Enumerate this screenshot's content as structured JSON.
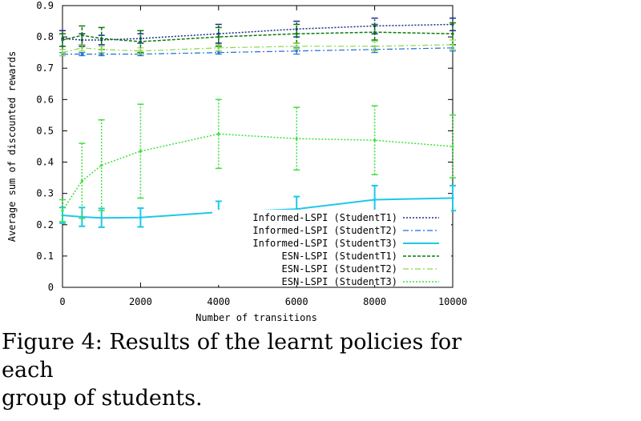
{
  "chart_data": {
    "type": "line",
    "xlabel": "Number of transitions",
    "ylabel": "Average sum of discounted rewards",
    "xlim": [
      0,
      10000
    ],
    "ylim": [
      0,
      0.9
    ],
    "x_ticks": [
      "0",
      "2000",
      "4000",
      "6000",
      "8000",
      "10000"
    ],
    "y_ticks": [
      "0",
      "0.1",
      "0.2",
      "0.3",
      "0.4",
      "0.5",
      "0.6",
      "0.7",
      "0.8",
      "0.9"
    ],
    "legend_position": "bottom-right",
    "grid": false,
    "x": [
      0,
      500,
      1000,
      2000,
      4000,
      6000,
      8000,
      10000
    ],
    "series": [
      {
        "name": "Informed-LSPI (StudentT1)",
        "color": "#1b2a8a",
        "dash": "2,2",
        "width": 1.5,
        "values": [
          0.795,
          0.79,
          0.79,
          0.795,
          0.81,
          0.825,
          0.835,
          0.84
        ],
        "err": [
          0.025,
          0.02,
          0.015,
          0.015,
          0.03,
          0.025,
          0.025,
          0.02
        ]
      },
      {
        "name": "Informed-LSPI (StudentT2)",
        "color": "#1f6fd6",
        "dash": "7,3,2,3",
        "width": 1.2,
        "values": [
          0.745,
          0.745,
          0.745,
          0.745,
          0.75,
          0.755,
          0.76,
          0.765
        ],
        "err": [
          0.005,
          0.005,
          0.005,
          0.005,
          0.005,
          0.01,
          0.01,
          0.01
        ]
      },
      {
        "name": "Informed-LSPI (StudentT3)",
        "color": "#1ec8e8",
        "dash": "",
        "width": 2,
        "values": [
          0.23,
          0.225,
          0.222,
          0.223,
          0.24,
          0.25,
          0.28,
          0.285
        ],
        "err": [
          0.025,
          0.03,
          0.03,
          0.03,
          0.035,
          0.04,
          0.045,
          0.04
        ]
      },
      {
        "name": "ESN-LSPI (StudentT1)",
        "color": "#0a7a0a",
        "dash": "4,2",
        "width": 1.5,
        "values": [
          0.79,
          0.805,
          0.795,
          0.785,
          0.8,
          0.81,
          0.815,
          0.81
        ],
        "err": [
          0.02,
          0.03,
          0.035,
          0.035,
          0.03,
          0.03,
          0.025,
          0.035
        ]
      },
      {
        "name": "ESN-LSPI (StudentT2)",
        "color": "#8cd64a",
        "dash": "7,3,2,3",
        "width": 1.2,
        "values": [
          0.75,
          0.765,
          0.76,
          0.755,
          0.765,
          0.77,
          0.77,
          0.775
        ],
        "err": [
          0.01,
          0.01,
          0.01,
          0.01,
          0.01,
          0.01,
          0.015,
          0.015
        ]
      },
      {
        "name": "ESN-LSPI (StudentT3)",
        "color": "#3ee03e",
        "dash": "2,2",
        "width": 1.5,
        "values": [
          0.245,
          0.34,
          0.39,
          0.435,
          0.49,
          0.475,
          0.47,
          0.45
        ],
        "err": [
          0.035,
          0.12,
          0.145,
          0.15,
          0.11,
          0.1,
          0.11,
          0.1
        ]
      }
    ]
  },
  "caption": {
    "line1": "Figure 4:  Results of the learnt policies for each",
    "line2": "group of students."
  }
}
